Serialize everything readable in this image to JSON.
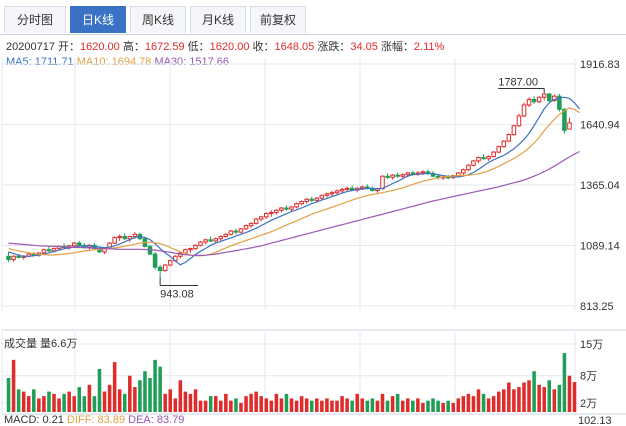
{
  "tabs": [
    {
      "label": "分时图",
      "active": false
    },
    {
      "label": "日K线",
      "active": true
    },
    {
      "label": "周K线",
      "active": false
    },
    {
      "label": "月K线",
      "active": false
    },
    {
      "label": "前复权",
      "active": false
    }
  ],
  "info": {
    "date": "20200717",
    "open_label": "开：",
    "open": "1620.00",
    "high_label": "高：",
    "high": "1672.59",
    "low_label": "低：",
    "low": "1620.00",
    "close_label": "收：",
    "close": "1648.05",
    "change_label": "涨跌：",
    "change": "34.05",
    "pct_label": "涨幅：",
    "pct": "2.11%"
  },
  "ma": {
    "ma5": "MA5: 1711.71",
    "ma10": "MA10: 1694.78",
    "ma30": "MA30: 1517.66"
  },
  "volume": {
    "label": "成交量 量6.6万"
  },
  "macd": {
    "macd": "MACD: 0.21",
    "diff": "DIFF: 83.89",
    "dea": "DEA: 83.79",
    "axis_label": "102.13"
  },
  "colors": {
    "up": "#e02b2b",
    "down": "#1e9e57",
    "ma5": "#3a73c5",
    "ma10": "#e3a043",
    "ma30": "#9a57b6",
    "grid": "#e3e8ef"
  },
  "chart_data": [
    {
      "type": "candlestick",
      "price_axis_labels": [
        "1916.83",
        "1640.94",
        "1365.04",
        "1089.14",
        "813.25"
      ],
      "ylim": [
        813.25,
        1916.83
      ],
      "annotations": [
        {
          "label": "1787.00",
          "value": 1787.0,
          "kind": "high"
        },
        {
          "label": "943.08",
          "value": 943.08,
          "kind": "low"
        }
      ],
      "ohlc": [
        [
          1040,
          1060,
          1015,
          1025
        ],
        [
          1025,
          1045,
          1015,
          1040
        ],
        [
          1040,
          1050,
          1030,
          1035
        ],
        [
          1035,
          1045,
          1025,
          1040
        ],
        [
          1040,
          1055,
          1035,
          1050
        ],
        [
          1050,
          1060,
          1040,
          1045
        ],
        [
          1045,
          1058,
          1038,
          1055
        ],
        [
          1055,
          1075,
          1050,
          1070
        ],
        [
          1070,
          1085,
          1060,
          1065
        ],
        [
          1065,
          1080,
          1058,
          1075
        ],
        [
          1075,
          1090,
          1068,
          1085
        ],
        [
          1085,
          1098,
          1075,
          1080
        ],
        [
          1080,
          1092,
          1070,
          1088
        ],
        [
          1088,
          1105,
          1080,
          1100
        ],
        [
          1100,
          1110,
          1085,
          1090
        ],
        [
          1090,
          1100,
          1075,
          1080
        ],
        [
          1080,
          1095,
          1070,
          1090
        ],
        [
          1090,
          1100,
          1070,
          1075
        ],
        [
          1075,
          1085,
          1055,
          1060
        ],
        [
          1060,
          1080,
          1050,
          1075
        ],
        [
          1075,
          1105,
          1070,
          1100
        ],
        [
          1100,
          1130,
          1095,
          1125
        ],
        [
          1125,
          1140,
          1110,
          1130
        ],
        [
          1130,
          1145,
          1115,
          1120
        ],
        [
          1120,
          1135,
          1105,
          1130
        ],
        [
          1130,
          1150,
          1120,
          1140
        ],
        [
          1140,
          1148,
          1115,
          1120
        ],
        [
          1120,
          1125,
          1080,
          1085
        ],
        [
          1085,
          1090,
          1045,
          1050
        ],
        [
          1050,
          1060,
          980,
          990
        ],
        [
          990,
          1000,
          943.08,
          975
        ],
        [
          975,
          1005,
          970,
          1000
        ],
        [
          1000,
          1025,
          995,
          1020
        ],
        [
          1020,
          1045,
          1015,
          1040
        ],
        [
          1040,
          1060,
          1030,
          1055
        ],
        [
          1055,
          1075,
          1045,
          1070
        ],
        [
          1070,
          1080,
          1055,
          1075
        ],
        [
          1075,
          1095,
          1070,
          1090
        ],
        [
          1090,
          1110,
          1085,
          1105
        ],
        [
          1105,
          1120,
          1095,
          1115
        ],
        [
          1115,
          1130,
          1105,
          1110
        ],
        [
          1110,
          1125,
          1100,
          1120
        ],
        [
          1120,
          1135,
          1110,
          1130
        ],
        [
          1130,
          1145,
          1125,
          1140
        ],
        [
          1140,
          1160,
          1135,
          1155
        ],
        [
          1155,
          1165,
          1140,
          1150
        ],
        [
          1150,
          1170,
          1145,
          1165
        ],
        [
          1165,
          1185,
          1160,
          1180
        ],
        [
          1180,
          1195,
          1170,
          1190
        ],
        [
          1190,
          1215,
          1185,
          1210
        ],
        [
          1210,
          1225,
          1200,
          1220
        ],
        [
          1220,
          1240,
          1210,
          1235
        ],
        [
          1235,
          1250,
          1220,
          1240
        ],
        [
          1240,
          1255,
          1230,
          1250
        ],
        [
          1250,
          1265,
          1240,
          1260
        ],
        [
          1260,
          1272,
          1248,
          1255
        ],
        [
          1255,
          1270,
          1245,
          1265
        ],
        [
          1265,
          1285,
          1258,
          1280
        ],
        [
          1280,
          1295,
          1272,
          1290
        ],
        [
          1290,
          1305,
          1280,
          1300
        ],
        [
          1300,
          1312,
          1288,
          1295
        ],
        [
          1295,
          1310,
          1285,
          1305
        ],
        [
          1305,
          1322,
          1298,
          1318
        ],
        [
          1318,
          1330,
          1308,
          1325
        ],
        [
          1325,
          1338,
          1315,
          1330
        ],
        [
          1330,
          1345,
          1320,
          1338
        ],
        [
          1338,
          1352,
          1330,
          1345
        ],
        [
          1345,
          1358,
          1335,
          1350
        ],
        [
          1350,
          1362,
          1340,
          1342
        ],
        [
          1342,
          1355,
          1332,
          1350
        ],
        [
          1350,
          1362,
          1342,
          1356
        ],
        [
          1356,
          1368,
          1345,
          1350
        ],
        [
          1350,
          1358,
          1335,
          1340
        ],
        [
          1340,
          1352,
          1330,
          1348
        ],
        [
          1348,
          1410,
          1345,
          1405
        ],
        [
          1405,
          1418,
          1392,
          1400
        ],
        [
          1400,
          1415,
          1390,
          1410
        ],
        [
          1410,
          1422,
          1398,
          1405
        ],
        [
          1405,
          1418,
          1395,
          1412
        ],
        [
          1412,
          1425,
          1400,
          1420
        ],
        [
          1420,
          1430,
          1408,
          1415
        ],
        [
          1415,
          1428,
          1405,
          1420
        ],
        [
          1420,
          1432,
          1410,
          1425
        ],
        [
          1425,
          1435,
          1410,
          1418
        ],
        [
          1418,
          1428,
          1400,
          1405
        ],
        [
          1405,
          1415,
          1390,
          1398
        ],
        [
          1398,
          1408,
          1388,
          1402
        ],
        [
          1402,
          1412,
          1392,
          1400
        ],
        [
          1400,
          1412,
          1392,
          1408
        ],
        [
          1408,
          1425,
          1400,
          1420
        ],
        [
          1420,
          1440,
          1412,
          1435
        ],
        [
          1435,
          1460,
          1428,
          1455
        ],
        [
          1455,
          1480,
          1450,
          1475
        ],
        [
          1475,
          1495,
          1465,
          1490
        ],
        [
          1490,
          1505,
          1480,
          1485
        ],
        [
          1485,
          1500,
          1475,
          1495
        ],
        [
          1495,
          1520,
          1490,
          1515
        ],
        [
          1515,
          1545,
          1510,
          1540
        ],
        [
          1540,
          1570,
          1535,
          1565
        ],
        [
          1565,
          1600,
          1560,
          1595
        ],
        [
          1595,
          1640,
          1590,
          1635
        ],
        [
          1635,
          1690,
          1630,
          1680
        ],
        [
          1680,
          1740,
          1675,
          1730
        ],
        [
          1730,
          1765,
          1720,
          1755
        ],
        [
          1755,
          1770,
          1735,
          1745
        ],
        [
          1745,
          1770,
          1738,
          1765
        ],
        [
          1765,
          1787,
          1750,
          1780
        ],
        [
          1780,
          1785,
          1740,
          1750
        ],
        [
          1750,
          1778,
          1745,
          1770
        ],
        [
          1770,
          1780,
          1700,
          1710
        ],
        [
          1710,
          1715,
          1600,
          1614
        ],
        [
          1620,
          1672.59,
          1620,
          1648.05
        ]
      ],
      "ma5": [
        1060,
        1052,
        1045,
        1040,
        1040,
        1042,
        1045,
        1050,
        1056,
        1062,
        1068,
        1074,
        1078,
        1082,
        1086,
        1088,
        1087,
        1085,
        1082,
        1079,
        1082,
        1088,
        1096,
        1106,
        1116,
        1126,
        1130,
        1126,
        1116,
        1098,
        1075,
        1055,
        1040,
        1018,
        1001,
        1012,
        1030,
        1048,
        1063,
        1076,
        1090,
        1100,
        1108,
        1116,
        1124,
        1132,
        1140,
        1148,
        1158,
        1168,
        1180,
        1192,
        1204,
        1214,
        1224,
        1234,
        1244,
        1252,
        1260,
        1270,
        1280,
        1288,
        1296,
        1304,
        1312,
        1320,
        1328,
        1335,
        1340,
        1344,
        1347,
        1349,
        1349,
        1347,
        1350,
        1360,
        1372,
        1382,
        1394,
        1406,
        1412,
        1414,
        1416,
        1418,
        1417,
        1412,
        1408,
        1404,
        1402,
        1402,
        1406,
        1412,
        1422,
        1436,
        1452,
        1468,
        1480,
        1490,
        1500,
        1514,
        1530,
        1550,
        1572,
        1600,
        1636,
        1674,
        1712,
        1740,
        1755,
        1762,
        1765,
        1760,
        1740,
        1711.71
      ],
      "ma10": [
        1075,
        1070,
        1065,
        1060,
        1056,
        1052,
        1049,
        1047,
        1046,
        1046,
        1048,
        1050,
        1053,
        1056,
        1060,
        1064,
        1067,
        1070,
        1072,
        1074,
        1076,
        1078,
        1082,
        1086,
        1090,
        1095,
        1100,
        1103,
        1104,
        1102,
        1098,
        1090,
        1080,
        1070,
        1060,
        1053,
        1046,
        1042,
        1042,
        1044,
        1050,
        1058,
        1068,
        1078,
        1088,
        1096,
        1104,
        1112,
        1120,
        1128,
        1136,
        1144,
        1152,
        1162,
        1172,
        1182,
        1192,
        1202,
        1212,
        1222,
        1232,
        1240,
        1248,
        1256,
        1264,
        1272,
        1280,
        1288,
        1296,
        1304,
        1311,
        1317,
        1322,
        1326,
        1330,
        1335,
        1340,
        1346,
        1352,
        1360,
        1368,
        1375,
        1382,
        1388,
        1393,
        1398,
        1402,
        1404,
        1406,
        1408,
        1409,
        1410,
        1412,
        1416,
        1422,
        1430,
        1440,
        1450,
        1462,
        1474,
        1486,
        1500,
        1516,
        1534,
        1556,
        1582,
        1612,
        1640,
        1664,
        1686,
        1704,
        1716,
        1710,
        1694.78
      ],
      "ma30": [
        1100,
        1098,
        1096,
        1094,
        1092,
        1090,
        1088,
        1087,
        1086,
        1085,
        1084,
        1083,
        1082,
        1081,
        1080,
        1079,
        1078,
        1077,
        1076,
        1075,
        1074,
        1073,
        1072,
        1072,
        1072,
        1072,
        1072,
        1071,
        1070,
        1068,
        1065,
        1062,
        1058,
        1054,
        1050,
        1047,
        1045,
        1044,
        1044,
        1045,
        1047,
        1050,
        1054,
        1058,
        1062,
        1066,
        1070,
        1074,
        1078,
        1083,
        1088,
        1094,
        1100,
        1106,
        1112,
        1118,
        1124,
        1130,
        1136,
        1142,
        1148,
        1154,
        1160,
        1166,
        1172,
        1178,
        1184,
        1190,
        1196,
        1202,
        1208,
        1214,
        1220,
        1226,
        1232,
        1238,
        1244,
        1250,
        1256,
        1262,
        1268,
        1274,
        1280,
        1286,
        1292,
        1297,
        1302,
        1307,
        1312,
        1317,
        1322,
        1327,
        1332,
        1337,
        1342,
        1347,
        1352,
        1357,
        1363,
        1369,
        1375,
        1381,
        1388,
        1396,
        1405,
        1415,
        1426,
        1438,
        1451,
        1465,
        1479,
        1493,
        1506,
        1517.66
      ]
    },
    {
      "type": "bar",
      "name": "volume",
      "unit_labels": [
        "15万",
        "8万",
        "2万"
      ],
      "ylim": [
        0,
        15
      ],
      "values": [
        7.5,
        11.5,
        5,
        4.5,
        3.5,
        5,
        3,
        3.5,
        4.5,
        4,
        3,
        4,
        4.5,
        3.5,
        5.5,
        3.5,
        6,
        3.5,
        9.5,
        4.5,
        6,
        11,
        5,
        4,
        8,
        5.5,
        7,
        9,
        7.5,
        11.5,
        10,
        4,
        5,
        3,
        7,
        4.5,
        4,
        5,
        2.5,
        2.5,
        3.5,
        3.5,
        2.5,
        4,
        2.5,
        3,
        2,
        3.5,
        4,
        4.5,
        3.5,
        3,
        2.5,
        4,
        3,
        4,
        3,
        2.5,
        3.5,
        3,
        2.5,
        3,
        2.5,
        3,
        2.5,
        2.5,
        3.5,
        3,
        2.5,
        4,
        3,
        2.5,
        3,
        2.5,
        4,
        2.5,
        3.5,
        4,
        2.5,
        3,
        2.5,
        3,
        2,
        2.5,
        3,
        2.5,
        2,
        2.5,
        2,
        3,
        3.5,
        4,
        3.5,
        5,
        4,
        3,
        3.5,
        4.5,
        5,
        6.5,
        5,
        5.5,
        6.5,
        7,
        9,
        6,
        5.5,
        7,
        5,
        6,
        13,
        8,
        6.6
      ]
    }
  ]
}
